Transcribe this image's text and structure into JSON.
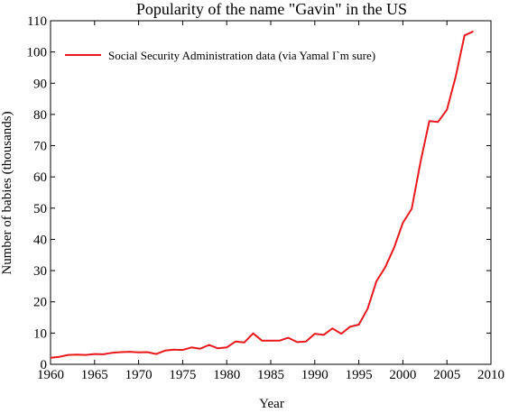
{
  "colors": {
    "series": "#e8181c",
    "axis": "#000000",
    "background": "#ffffff"
  },
  "chart_data": {
    "type": "line",
    "title": "Popularity of the name \"Gavin\" in the US",
    "xlabel": "Year",
    "ylabel": "Number of babies (thousands)",
    "xlim": [
      1960,
      2010
    ],
    "ylim": [
      0,
      110
    ],
    "xticks": [
      1960,
      1965,
      1970,
      1975,
      1980,
      1985,
      1990,
      1995,
      2000,
      2005,
      2010
    ],
    "yticks": [
      0,
      10,
      20,
      30,
      40,
      50,
      60,
      70,
      80,
      90,
      100,
      110
    ],
    "grid": false,
    "legend_position": "top-left",
    "series": [
      {
        "name": "Social Security Administration data (via Yamal I`m sure)",
        "color": "#e8181c",
        "x": [
          1960,
          1961,
          1962,
          1963,
          1964,
          1965,
          1966,
          1967,
          1968,
          1969,
          1970,
          1971,
          1972,
          1973,
          1974,
          1975,
          1976,
          1977,
          1978,
          1979,
          1980,
          1981,
          1982,
          1983,
          1984,
          1985,
          1986,
          1987,
          1988,
          1989,
          1990,
          1991,
          1992,
          1993,
          1994,
          1995,
          1996,
          1997,
          1998,
          1999,
          2000,
          2001,
          2002,
          2003,
          2004,
          2005,
          2006,
          2007,
          2008
        ],
        "y": [
          2.1,
          2.4,
          3.0,
          3.1,
          3.0,
          3.3,
          3.2,
          3.7,
          3.9,
          4.0,
          3.8,
          3.9,
          3.3,
          4.4,
          4.7,
          4.6,
          5.4,
          5.0,
          6.2,
          5.1,
          5.4,
          7.3,
          7.0,
          9.9,
          7.6,
          7.6,
          7.6,
          8.5,
          7.1,
          7.3,
          9.8,
          9.4,
          11.5,
          9.8,
          12.0,
          12.7,
          17.8,
          26.6,
          31.1,
          37.3,
          45.3,
          49.8,
          64.7,
          77.9,
          77.6,
          81.5,
          92.2,
          105.3,
          106.6
        ]
      }
    ]
  }
}
